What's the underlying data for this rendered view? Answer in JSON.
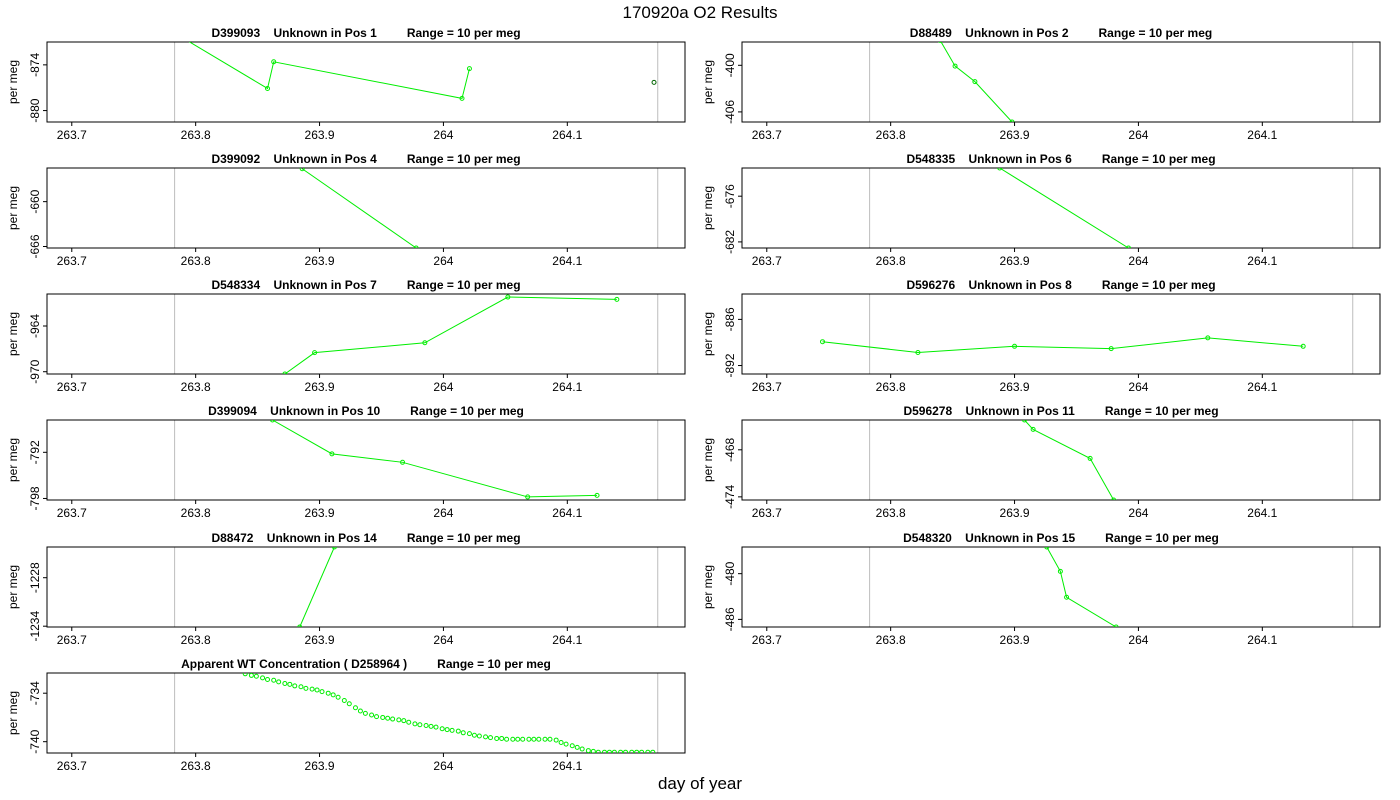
{
  "title": "170920a  O2 Results",
  "xlabel": "day of year",
  "chart_data": [
    {
      "type": "line",
      "title": "D399093    Unknown in Pos 1         Range = 10 per meg",
      "ylabel": "per meg",
      "yticks": [
        -874,
        -880
      ],
      "ylim": [
        -881.5,
        -871
      ],
      "xticks": [
        263.7,
        263.8,
        263.9,
        264.0,
        264.1
      ],
      "xlim": [
        263.68,
        264.195
      ],
      "refx": [
        263.783,
        264.173
      ],
      "series": [
        {
          "x": [
            263.79,
            263.858,
            263.863,
            264.015,
            264.021
          ],
          "y": [
            -870.5,
            -877.1,
            -873.6,
            -878.4,
            -874.5
          ]
        },
        {
          "x": [
            264.17
          ],
          "y": [
            -876.3
          ],
          "color": "#006400"
        }
      ]
    },
    {
      "type": "line",
      "title": "D88489    Unknown in Pos 2         Range = 10 per meg",
      "ylabel": "per meg",
      "yticks": [
        -400,
        -406
      ],
      "ylim": [
        -407.3,
        -397
      ],
      "xticks": [
        263.7,
        263.8,
        263.9,
        264.0,
        264.1
      ],
      "xlim": [
        263.68,
        264.195
      ],
      "refx": [
        263.783,
        264.173
      ],
      "series": [
        {
          "x": [
            263.84,
            263.852,
            263.868,
            263.898
          ],
          "y": [
            -396.8,
            -400.1,
            -402.1,
            -407.3
          ]
        }
      ]
    },
    {
      "type": "line",
      "title": "D399092    Unknown in Pos 4         Range = 10 per meg",
      "ylabel": "per meg",
      "yticks": [
        -660,
        -666
      ],
      "ylim": [
        -666.2,
        -655.5
      ],
      "xticks": [
        263.7,
        263.8,
        263.9,
        264.0,
        264.1
      ],
      "xlim": [
        263.68,
        264.195
      ],
      "refx": [
        263.783,
        264.173
      ],
      "series": [
        {
          "x": [
            263.886,
            263.978
          ],
          "y": [
            -655.6,
            -666.2
          ]
        }
      ]
    },
    {
      "type": "line",
      "title": "D548335    Unknown in Pos 6         Range = 10 per meg",
      "ylabel": "per meg",
      "yticks": [
        -676,
        -682
      ],
      "ylim": [
        -682.8,
        -672.3
      ],
      "xticks": [
        263.7,
        263.8,
        263.9,
        264.0,
        264.1
      ],
      "xlim": [
        263.68,
        264.195
      ],
      "refx": [
        263.783,
        264.173
      ],
      "series": [
        {
          "x": [
            263.888,
            263.992
          ],
          "y": [
            -672.3,
            -682.8
          ]
        }
      ]
    },
    {
      "type": "line",
      "title": "D548334    Unknown in Pos 7         Range = 10 per meg",
      "ylabel": "per meg",
      "yticks": [
        -964,
        -970
      ],
      "ylim": [
        -970.3,
        -959.8
      ],
      "xticks": [
        263.7,
        263.8,
        263.9,
        264.0,
        264.1
      ],
      "xlim": [
        263.68,
        264.195
      ],
      "refx": [
        263.783,
        264.173
      ],
      "series": [
        {
          "x": [
            263.872,
            263.896,
            263.985,
            264.052,
            264.14
          ],
          "y": [
            -970.3,
            -967.5,
            -966.2,
            -960.2,
            -960.5
          ]
        }
      ]
    },
    {
      "type": "line",
      "title": "D596276    Unknown in Pos 8         Range = 10 per meg",
      "ylabel": "per meg",
      "yticks": [
        -886,
        -892
      ],
      "ylim": [
        -893.1,
        -882.7
      ],
      "xticks": [
        263.7,
        263.8,
        263.9,
        264.0,
        264.1
      ],
      "xlim": [
        263.68,
        264.195
      ],
      "refx": [
        263.783,
        264.173
      ],
      "series": [
        {
          "x": [
            263.745,
            263.822,
            263.9,
            263.978,
            264.056,
            264.133
          ],
          "y": [
            -888.9,
            -890.3,
            -889.5,
            -889.8,
            -888.4,
            -889.5
          ]
        }
      ]
    },
    {
      "type": "line",
      "title": "D399094    Unknown in Pos 10         Range = 10 per meg",
      "ylabel": "per meg",
      "yticks": [
        -792,
        -798
      ],
      "ylim": [
        -798.2,
        -787.8
      ],
      "xticks": [
        263.7,
        263.8,
        263.9,
        264.0,
        264.1
      ],
      "xlim": [
        263.68,
        264.195
      ],
      "refx": [
        263.783,
        264.173
      ],
      "series": [
        {
          "x": [
            263.862,
            263.91,
            263.967,
            264.068,
            264.124
          ],
          "y": [
            -787.8,
            -792.2,
            -793.3,
            -797.8,
            -797.6
          ]
        }
      ]
    },
    {
      "type": "line",
      "title": "D596278    Unknown in Pos 11         Range = 10 per meg",
      "ylabel": "per meg",
      "yticks": [
        -468,
        -474
      ],
      "ylim": [
        -474.4,
        -464.2
      ],
      "xticks": [
        263.7,
        263.8,
        263.9,
        264.0,
        264.1
      ],
      "xlim": [
        263.68,
        264.195
      ],
      "refx": [
        263.783,
        264.173
      ],
      "series": [
        {
          "x": [
            263.908,
            263.915,
            263.961,
            263.98
          ],
          "y": [
            -464.2,
            -465.4,
            -469.1,
            -474.4
          ]
        }
      ]
    },
    {
      "type": "line",
      "title": "D88472    Unknown in Pos 14         Range = 10 per meg",
      "ylabel": "per meg",
      "yticks": [
        -1228,
        -1234
      ],
      "ylim": [
        -1234.1,
        -1224.2
      ],
      "xticks": [
        263.7,
        263.8,
        263.9,
        264.0,
        264.1
      ],
      "xlim": [
        263.68,
        264.195
      ],
      "refx": [
        263.783,
        264.173
      ],
      "series": [
        {
          "x": [
            263.912,
            263.884
          ],
          "y": [
            -1224.2,
            -1234.1
          ]
        }
      ]
    },
    {
      "type": "line",
      "title": "D548320    Unknown in Pos 15         Range = 10 per meg",
      "ylabel": "per meg",
      "yticks": [
        -480,
        -486
      ],
      "ylim": [
        -487,
        -476.5
      ],
      "xticks": [
        263.7,
        263.8,
        263.9,
        264.0,
        264.1
      ],
      "xlim": [
        263.68,
        264.195
      ],
      "refx": [
        263.783,
        264.173
      ],
      "series": [
        {
          "x": [
            263.926,
            263.937,
            263.942,
            263.982
          ],
          "y": [
            -476.5,
            -479.7,
            -483.1,
            -487
          ]
        }
      ]
    },
    {
      "type": "scatter",
      "title": "Apparent WT Concentration ( D258964 )         Range = 10 per meg",
      "ylabel": "per meg",
      "yticks": [
        -734,
        -740
      ],
      "ylim": [
        -741.4,
        -731.5
      ],
      "xticks": [
        263.7,
        263.8,
        263.9,
        264.0,
        264.1
      ],
      "xlim": [
        263.68,
        264.195
      ],
      "refx": [
        263.783,
        264.173
      ],
      "series": [
        {
          "x": [
            263.84,
            263.845,
            263.849,
            263.854,
            263.858,
            263.863,
            263.867,
            263.872,
            263.876,
            263.88,
            263.885,
            263.889,
            263.894,
            263.898,
            263.902,
            263.907,
            263.911,
            263.915,
            263.92,
            263.924,
            263.929,
            263.933,
            263.937,
            263.942,
            263.946,
            263.951,
            263.955,
            263.959,
            263.964,
            263.968,
            263.972,
            263.977,
            263.981,
            263.986,
            263.99,
            263.994,
            263.999,
            264.003,
            264.007,
            264.012,
            264.016,
            264.021,
            264.025,
            264.029,
            264.034,
            264.038,
            264.043,
            264.047,
            264.051,
            264.056,
            264.06,
            264.064,
            264.069,
            264.073,
            264.077,
            264.082,
            264.086,
            264.091,
            264.095,
            264.099,
            264.104,
            264.108,
            264.112,
            264.117,
            264.121,
            264.125,
            264.13,
            264.134,
            264.138,
            264.143,
            264.147,
            264.152,
            264.156,
            264.16,
            264.165,
            264.169
          ],
          "y": [
            -731.6,
            -731.8,
            -731.9,
            -732.1,
            -732.3,
            -732.4,
            -732.6,
            -732.8,
            -732.9,
            -733.1,
            -733.2,
            -733.4,
            -733.5,
            -733.6,
            -733.8,
            -734,
            -734.2,
            -734.5,
            -734.9,
            -735.3,
            -735.8,
            -736.2,
            -736.5,
            -736.7,
            -736.9,
            -737,
            -737.1,
            -737.2,
            -737.3,
            -737.4,
            -737.6,
            -737.8,
            -737.9,
            -738,
            -738.1,
            -738.2,
            -738.4,
            -738.5,
            -738.6,
            -738.7,
            -738.9,
            -739,
            -739.2,
            -739.3,
            -739.4,
            -739.5,
            -739.6,
            -739.6,
            -739.7,
            -739.7,
            -739.7,
            -739.7,
            -739.7,
            -739.7,
            -739.7,
            -739.7,
            -739.7,
            -739.8,
            -740.1,
            -740.3,
            -740.5,
            -740.7,
            -740.9,
            -741.1,
            -741.2,
            -741.3,
            -741.3,
            -741.3,
            -741.3,
            -741.3,
            -741.3,
            -741.3,
            -741.3,
            -741.3,
            -741.3,
            -741.3
          ]
        }
      ]
    }
  ]
}
